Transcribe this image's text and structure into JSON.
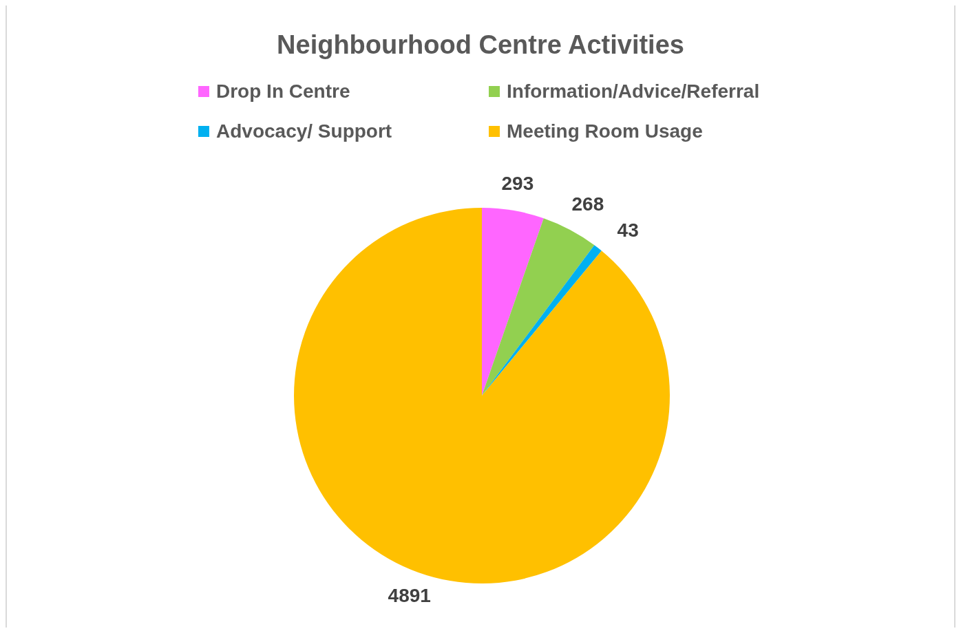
{
  "chart_data": {
    "type": "pie",
    "title": "Neighbourhood Centre Activities",
    "categories": [
      "Drop In Centre",
      "Information/Advice/Referral",
      "Advocacy/ Support",
      "Meeting Room Usage"
    ],
    "values": [
      293,
      268,
      43,
      4891
    ],
    "colors": [
      "#ff66ff",
      "#92d050",
      "#00b0f0",
      "#ffc000"
    ],
    "data_labels": true,
    "legend": "top"
  }
}
